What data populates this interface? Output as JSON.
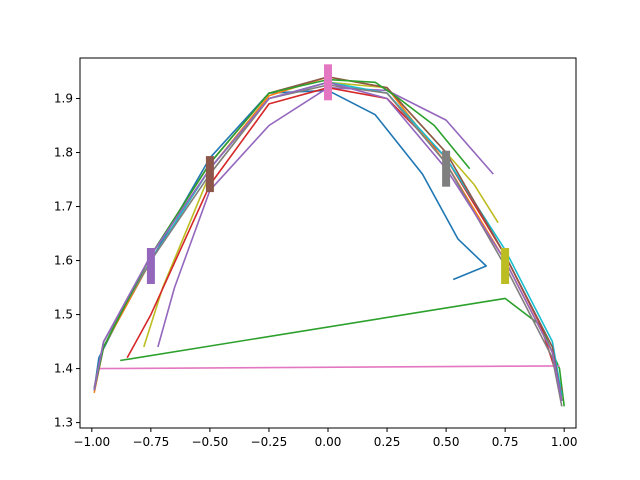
{
  "chart_data": {
    "type": "line",
    "title": "",
    "xlabel": "",
    "ylabel": "",
    "xlim": [
      -1.05,
      1.05
    ],
    "ylim": [
      1.29,
      1.975
    ],
    "grid": false,
    "legend": "none",
    "xticks": [
      {
        "value": -1.0,
        "label": "−1.00"
      },
      {
        "value": -0.75,
        "label": "−0.75"
      },
      {
        "value": -0.5,
        "label": "−0.50"
      },
      {
        "value": -0.25,
        "label": "−0.25"
      },
      {
        "value": 0.0,
        "label": "0.00"
      },
      {
        "value": 0.25,
        "label": "0.25"
      },
      {
        "value": 0.5,
        "label": "0.50"
      },
      {
        "value": 0.75,
        "label": "0.75"
      },
      {
        "value": 1.0,
        "label": "1.00"
      }
    ],
    "yticks": [
      {
        "value": 1.3,
        "label": "1.3"
      },
      {
        "value": 1.4,
        "label": "1.4"
      },
      {
        "value": 1.5,
        "label": "1.5"
      },
      {
        "value": 1.6,
        "label": "1.6"
      },
      {
        "value": 1.7,
        "label": "1.7"
      },
      {
        "value": 1.8,
        "label": "1.8"
      },
      {
        "value": 1.9,
        "label": "1.9"
      }
    ],
    "series": [
      {
        "color": "#1f77b4",
        "x": [
          -0.99,
          -0.97,
          -0.9,
          -0.75,
          -0.5,
          -0.25,
          0.0,
          0.2,
          0.4,
          0.55,
          0.67,
          0.53
        ],
        "y": [
          1.36,
          1.42,
          1.48,
          1.6,
          1.79,
          1.91,
          1.915,
          1.87,
          1.76,
          1.64,
          1.59,
          1.565
        ]
      },
      {
        "color": "#2ca02c",
        "x": [
          1.0,
          0.98,
          0.9,
          0.75,
          -0.88
        ],
        "y": [
          1.33,
          1.4,
          1.48,
          1.53,
          1.415
        ]
      },
      {
        "color": "#e377c2",
        "x": [
          0.98,
          -0.97
        ],
        "y": [
          1.405,
          1.4
        ]
      },
      {
        "color": "#9467bd",
        "x": [
          -0.72,
          -0.65,
          -0.5,
          -0.25,
          0.0,
          0.25,
          0.5,
          0.7
        ],
        "y": [
          1.44,
          1.55,
          1.73,
          1.85,
          1.92,
          1.915,
          1.86,
          1.76
        ]
      },
      {
        "color": "#bcbd22",
        "x": [
          -0.78,
          -0.7,
          -0.5,
          -0.25,
          0.0,
          0.25,
          0.5,
          0.62,
          0.72
        ],
        "y": [
          1.44,
          1.55,
          1.76,
          1.9,
          1.93,
          1.92,
          1.8,
          1.74,
          1.67
        ]
      },
      {
        "color": "#d62728",
        "x": [
          -0.85,
          -0.75,
          -0.5,
          -0.25,
          0.0,
          0.25,
          0.5,
          0.75,
          0.9,
          0.99
        ],
        "y": [
          1.42,
          1.5,
          1.74,
          1.89,
          1.92,
          1.9,
          1.79,
          1.61,
          1.48,
          1.36
        ]
      },
      {
        "color": "#ff7f0e",
        "x": [
          -0.99,
          -0.95,
          -0.75,
          -0.5,
          -0.25,
          0.0,
          0.25,
          0.5,
          0.75,
          0.95,
          0.99
        ],
        "y": [
          1.355,
          1.44,
          1.6,
          1.77,
          1.905,
          1.94,
          1.92,
          1.78,
          1.6,
          1.43,
          1.34
        ]
      },
      {
        "color": "#17becf",
        "x": [
          -0.99,
          -0.95,
          -0.75,
          -0.5,
          -0.25,
          0.0,
          0.25,
          0.5,
          0.75,
          0.95,
          0.99
        ],
        "y": [
          1.36,
          1.45,
          1.6,
          1.77,
          1.9,
          1.93,
          1.91,
          1.79,
          1.62,
          1.45,
          1.35
        ]
      },
      {
        "color": "#8c564b",
        "x": [
          -0.99,
          -0.95,
          -0.75,
          -0.5,
          -0.25,
          0.0,
          0.25,
          0.5,
          0.75,
          0.95,
          0.99
        ],
        "y": [
          1.36,
          1.44,
          1.61,
          1.78,
          1.91,
          1.94,
          1.92,
          1.8,
          1.61,
          1.44,
          1.34
        ]
      },
      {
        "color": "#7f7f7f",
        "x": [
          -0.99,
          -0.95,
          -0.75,
          -0.5,
          -0.25,
          0.0,
          0.25,
          0.5,
          0.75,
          0.95,
          0.99
        ],
        "y": [
          1.365,
          1.45,
          1.6,
          1.76,
          1.9,
          1.925,
          1.91,
          1.78,
          1.59,
          1.42,
          1.33
        ]
      },
      {
        "color": "#2ca02c",
        "x": [
          -0.99,
          -0.95,
          -0.75,
          -0.5,
          -0.25,
          0.0,
          0.2,
          0.3,
          0.45,
          0.6
        ],
        "y": [
          1.36,
          1.44,
          1.61,
          1.78,
          1.91,
          1.935,
          1.93,
          1.9,
          1.85,
          1.77
        ]
      },
      {
        "color": "#9467bd",
        "x": [
          -0.99,
          -0.95,
          -0.75,
          -0.5,
          -0.25,
          0.0,
          0.25,
          0.5,
          0.75,
          0.95,
          0.99
        ],
        "y": [
          1.36,
          1.45,
          1.61,
          1.77,
          1.9,
          1.93,
          1.9,
          1.77,
          1.6,
          1.43,
          1.34
        ]
      }
    ],
    "markers": [
      {
        "x": -0.75,
        "y": 1.59,
        "color": "#9467bd"
      },
      {
        "x": -0.5,
        "y": 1.76,
        "color": "#8c564b"
      },
      {
        "x": 0.0,
        "y": 1.93,
        "color": "#e377c2"
      },
      {
        "x": 0.5,
        "y": 1.77,
        "color": "#7f7f7f"
      },
      {
        "x": 0.75,
        "y": 1.59,
        "color": "#bcbd22"
      }
    ]
  }
}
